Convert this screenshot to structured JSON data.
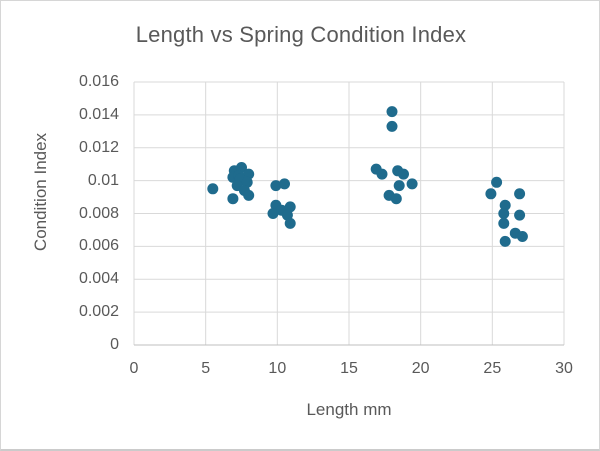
{
  "chart_data": {
    "type": "scatter",
    "title": "Length vs Spring Condition Index",
    "xlabel": "Length mm",
    "ylabel": "Condition Index",
    "xlim": [
      0,
      30
    ],
    "ylim": [
      0,
      0.016
    ],
    "grid": true,
    "legend": false,
    "marker_radius": 5.5,
    "colors": {
      "marker": "#1F6B8D",
      "gridline": "#D9D9D9",
      "axis_line": "#BFBFBF",
      "text": "#595959",
      "background": "#FFFFFF",
      "frame_border": "#D6D6D6"
    },
    "x_ticks": [
      {
        "value": 0,
        "label": "0"
      },
      {
        "value": 5,
        "label": "5"
      },
      {
        "value": 10,
        "label": "10"
      },
      {
        "value": 15,
        "label": "15"
      },
      {
        "value": 20,
        "label": "20"
      },
      {
        "value": 25,
        "label": "25"
      },
      {
        "value": 30,
        "label": "30"
      }
    ],
    "y_ticks": [
      {
        "value": 0,
        "label": "0"
      },
      {
        "value": 0.002,
        "label": "0.002"
      },
      {
        "value": 0.004,
        "label": "0.004"
      },
      {
        "value": 0.006,
        "label": "0.006"
      },
      {
        "value": 0.008,
        "label": "0.008"
      },
      {
        "value": 0.01,
        "label": "0.01"
      },
      {
        "value": 0.012,
        "label": "0.012"
      },
      {
        "value": 0.014,
        "label": "0.014"
      },
      {
        "value": 0.016,
        "label": "0.016"
      }
    ],
    "points": [
      [
        5.5,
        0.0095
      ],
      [
        7.0,
        0.0106
      ],
      [
        7.5,
        0.0108
      ],
      [
        8.0,
        0.0104
      ],
      [
        6.9,
        0.0102
      ],
      [
        7.3,
        0.0103
      ],
      [
        7.4,
        0.0101
      ],
      [
        7.9,
        0.0099
      ],
      [
        7.2,
        0.0097
      ],
      [
        7.7,
        0.0094
      ],
      [
        6.9,
        0.0089
      ],
      [
        8.0,
        0.0091
      ],
      [
        9.9,
        0.0097
      ],
      [
        10.5,
        0.0098
      ],
      [
        9.9,
        0.0085
      ],
      [
        9.7,
        0.008
      ],
      [
        10.3,
        0.0082
      ],
      [
        10.9,
        0.0084
      ],
      [
        10.7,
        0.0079
      ],
      [
        10.9,
        0.0074
      ],
      [
        18.0,
        0.0142
      ],
      [
        18.0,
        0.0133
      ],
      [
        16.9,
        0.0107
      ],
      [
        17.3,
        0.0104
      ],
      [
        18.4,
        0.0106
      ],
      [
        18.8,
        0.0104
      ],
      [
        19.4,
        0.0098
      ],
      [
        18.5,
        0.0097
      ],
      [
        17.8,
        0.0091
      ],
      [
        18.3,
        0.0089
      ],
      [
        25.3,
        0.0099
      ],
      [
        24.9,
        0.0092
      ],
      [
        26.9,
        0.0092
      ],
      [
        25.9,
        0.0085
      ],
      [
        25.8,
        0.008
      ],
      [
        26.9,
        0.0079
      ],
      [
        25.8,
        0.0074
      ],
      [
        26.6,
        0.0068
      ],
      [
        27.1,
        0.0066
      ],
      [
        25.9,
        0.0063
      ]
    ]
  }
}
